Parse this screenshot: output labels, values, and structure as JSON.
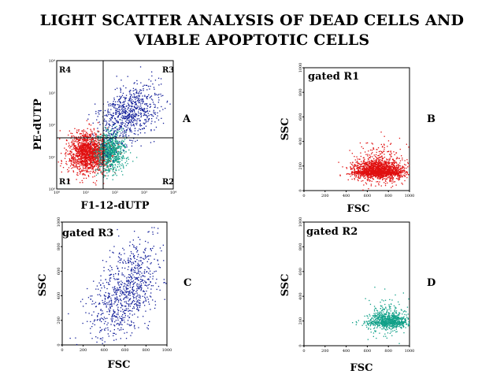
{
  "title": {
    "line1": "LIGHT SCATTER ANALYSIS OF DEAD CELLS AND",
    "line2": "VIABLE APOPTOTIC CELLS"
  },
  "colors": {
    "R1": "#e01010",
    "R2": "#10a088",
    "R3": "#101c98"
  },
  "chart_data": [
    {
      "id": "A",
      "type": "scatter",
      "panel_letter": "A",
      "xlabel": "F1-12-dUTP",
      "ylabel": "PE-dUTP",
      "scale": "log",
      "xlim": [
        1,
        10000
      ],
      "ylim": [
        1,
        10000
      ],
      "x_ticks": [
        "10⁰",
        "10¹",
        "10²",
        "10³",
        "10⁴"
      ],
      "y_ticks": [
        "10⁰",
        "10¹",
        "10²",
        "10³",
        "10⁴"
      ],
      "quadrant_gate": {
        "x": 45,
        "y": 40
      },
      "region_labels": [
        "R4",
        "R3",
        "R1",
        "R2"
      ],
      "series": [
        {
          "region": "R1",
          "color": "#e01010",
          "count": 1600,
          "center": [
            12,
            14
          ],
          "spread_decades": [
            0.35,
            0.3
          ]
        },
        {
          "region": "R2",
          "color": "#10a088",
          "count": 800,
          "center": [
            70,
            15
          ],
          "spread_decades": [
            0.25,
            0.3
          ]
        },
        {
          "region": "R3",
          "color": "#101c98",
          "count": 750,
          "center_1": [
            60,
            90
          ],
          "center_2": [
            1200,
            600
          ],
          "spread_decades": [
            0.35,
            0.4
          ]
        }
      ]
    },
    {
      "id": "B",
      "type": "scatter",
      "panel_letter": "B",
      "gate_label": "gated R1",
      "xlabel": "FSC",
      "ylabel": "SSC",
      "xlim": [
        0,
        1000
      ],
      "ylim": [
        0,
        1000
      ],
      "x_ticks": [
        0,
        200,
        400,
        600,
        800,
        1000
      ],
      "y_ticks": [
        0,
        200,
        400,
        600,
        800,
        1000
      ],
      "series": [
        {
          "region": "R1",
          "color": "#e01010",
          "count": 2000,
          "center": [
            700,
            160
          ],
          "spread": [
            120,
            60
          ]
        }
      ]
    },
    {
      "id": "C",
      "type": "scatter",
      "panel_letter": "C",
      "gate_label": "gated R3",
      "xlabel": "FSC",
      "ylabel": "SSC",
      "xlim": [
        0,
        1000
      ],
      "ylim": [
        0,
        1000
      ],
      "x_ticks": [
        0,
        200,
        400,
        600,
        800,
        1000
      ],
      "y_ticks": [
        0,
        200,
        400,
        600,
        800,
        1000
      ],
      "series": [
        {
          "region": "R3",
          "color": "#101c98",
          "count": 850,
          "center": [
            600,
            430
          ],
          "spread": [
            170,
            170
          ]
        }
      ]
    },
    {
      "id": "D",
      "type": "scatter",
      "panel_letter": "D",
      "gate_label": "gated R2",
      "xlabel": "FSC",
      "ylabel": "SSC",
      "xlim": [
        0,
        1000
      ],
      "ylim": [
        0,
        1000
      ],
      "x_ticks": [
        0,
        200,
        400,
        600,
        800,
        1000
      ],
      "y_ticks": [
        0,
        200,
        400,
        600,
        800,
        1000
      ],
      "series": [
        {
          "region": "R2",
          "color": "#10a088",
          "count": 900,
          "center": [
            800,
            200
          ],
          "spread": [
            100,
            55
          ]
        }
      ]
    }
  ]
}
